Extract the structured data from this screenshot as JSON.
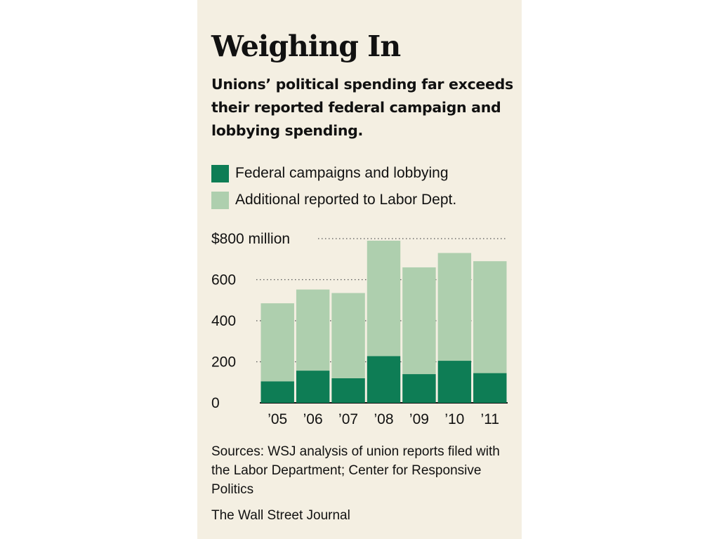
{
  "chart_data": {
    "type": "bar",
    "stacked": true,
    "title": "Weighing In",
    "subtitle": "Unions’ political spending far exceeds their reported federal campaign and lobbying spending.",
    "categories": [
      "’05",
      "’06",
      "’07",
      "’08",
      "’09",
      "’10",
      "’11"
    ],
    "series": [
      {
        "name": "Federal campaigns and lobbying",
        "color": "#0e7d55",
        "values": [
          105,
          157,
          120,
          228,
          140,
          205,
          145
        ]
      },
      {
        "name": "Additional reported to Labor Dept.",
        "color": "#aecfae",
        "values": [
          380,
          395,
          415,
          562,
          520,
          525,
          545
        ]
      }
    ],
    "ylim": [
      0,
      800
    ],
    "yticks": [
      0,
      200,
      400,
      600,
      800
    ],
    "ytick_labels": [
      "0",
      "200",
      "400",
      "600",
      "$800 million"
    ],
    "grid": true,
    "legend_position": "top"
  },
  "sources": "Sources: WSJ analysis of union reports filed with the Labor Department; Center for Responsive Politics",
  "credit": "The Wall Street Journal"
}
